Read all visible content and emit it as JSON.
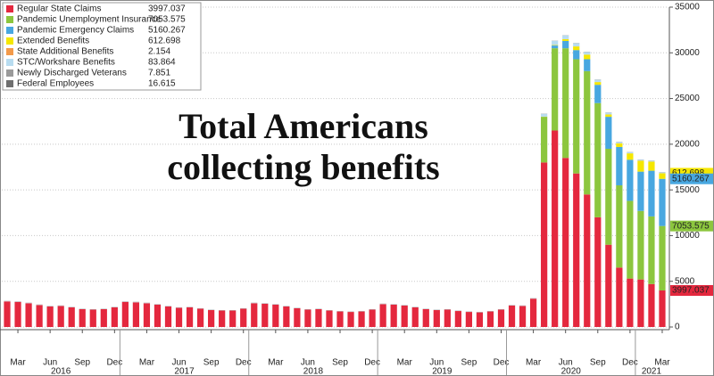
{
  "chart_data": {
    "type": "stacked_bar",
    "annotation": [
      "Total Americans",
      "collecting benefits"
    ],
    "categories": [
      null,
      "Mar",
      null,
      null,
      "Jun",
      null,
      null,
      "Sep",
      null,
      null,
      "Dec",
      null,
      null,
      "Mar",
      null,
      null,
      "Jun",
      null,
      null,
      "Sep",
      null,
      null,
      "Dec",
      null,
      null,
      "Mar",
      null,
      null,
      "Jun",
      null,
      null,
      "Sep",
      null,
      null,
      "Dec",
      null,
      null,
      "Mar",
      null,
      null,
      "Jun",
      null,
      null,
      "Sep",
      null,
      null,
      "Dec",
      null,
      null,
      "Mar",
      null,
      null,
      "Jun",
      null,
      null,
      "Sep",
      null,
      null,
      "Dec",
      null,
      null,
      "Mar"
    ],
    "years": [
      "2016",
      "2017",
      "2018",
      "2019",
      "2020",
      "2021"
    ],
    "series": [
      {
        "name": "Regular State Claims",
        "color": "#e4283e",
        "values": [
          2800,
          2750,
          2600,
          2400,
          2250,
          2300,
          2150,
          1950,
          1900,
          1950,
          2150,
          2750,
          2700,
          2600,
          2450,
          2250,
          2100,
          2150,
          2000,
          1850,
          1800,
          1800,
          2000,
          2600,
          2550,
          2450,
          2250,
          2050,
          1900,
          1950,
          1800,
          1700,
          1650,
          1700,
          1900,
          2500,
          2450,
          2350,
          2150,
          1950,
          1850,
          1900,
          1750,
          1650,
          1600,
          1700,
          1900,
          2350,
          2300,
          3100,
          18000,
          21500,
          18500,
          16800,
          14500,
          12000,
          9000,
          6500,
          5300,
          5200,
          4700,
          3997.037
        ]
      },
      {
        "name": "Pandemic Unemployment Insurance",
        "color": "#8cc63e",
        "values": [
          0,
          0,
          0,
          0,
          0,
          0,
          0,
          0,
          0,
          0,
          0,
          0,
          0,
          0,
          0,
          0,
          0,
          0,
          0,
          0,
          0,
          0,
          0,
          0,
          0,
          0,
          0,
          0,
          0,
          0,
          0,
          0,
          0,
          0,
          0,
          0,
          0,
          0,
          0,
          0,
          0,
          0,
          0,
          0,
          0,
          0,
          0,
          0,
          0,
          0,
          5000,
          9000,
          12000,
          12500,
          13500,
          12500,
          10500,
          9000,
          8500,
          7500,
          7400,
          7053.575
        ]
      },
      {
        "name": "Pandemic Emergency Claims",
        "color": "#48a7e0",
        "values": [
          0,
          0,
          0,
          0,
          0,
          0,
          0,
          0,
          0,
          0,
          0,
          0,
          0,
          0,
          0,
          0,
          0,
          0,
          0,
          0,
          0,
          0,
          0,
          0,
          0,
          0,
          0,
          0,
          0,
          0,
          0,
          0,
          0,
          0,
          0,
          0,
          0,
          0,
          0,
          0,
          0,
          0,
          0,
          0,
          0,
          0,
          0,
          0,
          0,
          0,
          0,
          300,
          800,
          1000,
          1300,
          2000,
          3500,
          4200,
          4500,
          4300,
          5000,
          5160.267
        ]
      },
      {
        "name": "Extended Benefits",
        "color": "#f5e700",
        "values": [
          2,
          2,
          2,
          2,
          2,
          2,
          2,
          2,
          2,
          2,
          2,
          2,
          2,
          2,
          2,
          2,
          2,
          2,
          2,
          2,
          2,
          2,
          2,
          2,
          2,
          2,
          2,
          2,
          2,
          2,
          2,
          2,
          2,
          2,
          2,
          2,
          2,
          2,
          2,
          2,
          2,
          2,
          2,
          2,
          2,
          2,
          2,
          2,
          2,
          2,
          20,
          50,
          200,
          400,
          500,
          300,
          250,
          400,
          700,
          1200,
          1000,
          612.698
        ]
      },
      {
        "name": "State Additional Benefits",
        "color": "#f39a4a",
        "values": [
          2,
          2,
          2,
          2,
          2,
          2,
          2,
          2,
          2,
          2,
          2,
          2,
          2,
          2,
          2,
          2,
          2,
          2,
          2,
          2,
          2,
          2,
          2,
          2,
          2,
          2,
          2,
          2,
          2,
          2,
          2,
          2,
          2,
          2,
          2,
          2,
          2,
          2,
          2,
          2,
          2,
          2,
          2,
          2,
          2,
          2,
          2,
          2,
          2,
          2,
          2,
          2,
          2,
          2,
          2,
          2,
          2,
          2,
          2,
          2,
          2,
          2.154
        ]
      },
      {
        "name": "STC/Workshare Benefits",
        "color": "#b8dcf0",
        "values": [
          25,
          25,
          25,
          25,
          25,
          25,
          25,
          25,
          25,
          25,
          25,
          25,
          25,
          25,
          25,
          25,
          25,
          25,
          25,
          25,
          25,
          25,
          25,
          25,
          25,
          25,
          25,
          25,
          25,
          25,
          25,
          25,
          25,
          25,
          25,
          25,
          25,
          25,
          25,
          25,
          25,
          25,
          25,
          25,
          25,
          25,
          25,
          25,
          25,
          30,
          300,
          450,
          400,
          350,
          300,
          250,
          200,
          150,
          120,
          100,
          90,
          83.864
        ]
      },
      {
        "name": "Newly Discharged Veterans",
        "color": "#9a9a9a",
        "values": [
          8,
          8,
          8,
          8,
          8,
          8,
          8,
          8,
          8,
          8,
          8,
          8,
          8,
          8,
          8,
          8,
          8,
          8,
          8,
          8,
          8,
          8,
          8,
          8,
          8,
          8,
          8,
          8,
          8,
          8,
          8,
          8,
          8,
          8,
          8,
          8,
          8,
          8,
          8,
          8,
          8,
          8,
          8,
          8,
          8,
          8,
          8,
          8,
          8,
          8,
          8,
          8,
          8,
          8,
          8,
          8,
          8,
          8,
          8,
          8,
          8,
          7.851
        ]
      },
      {
        "name": "Federal Employees",
        "color": "#6f6f6f",
        "values": [
          15,
          15,
          15,
          15,
          15,
          15,
          15,
          15,
          15,
          15,
          15,
          15,
          15,
          15,
          15,
          15,
          15,
          15,
          15,
          15,
          15,
          15,
          15,
          15,
          15,
          15,
          15,
          15,
          15,
          15,
          15,
          15,
          15,
          15,
          15,
          15,
          15,
          15,
          15,
          15,
          15,
          15,
          15,
          15,
          15,
          15,
          15,
          15,
          15,
          15,
          15,
          15,
          15,
          15,
          15,
          15,
          15,
          15,
          15,
          15,
          15,
          16.615
        ]
      }
    ],
    "ylim": [
      0,
      35000
    ],
    "yticks": [
      0,
      5000,
      10000,
      15000,
      20000,
      25000,
      30000,
      35000
    ],
    "grid": true,
    "legend": "upper left"
  }
}
